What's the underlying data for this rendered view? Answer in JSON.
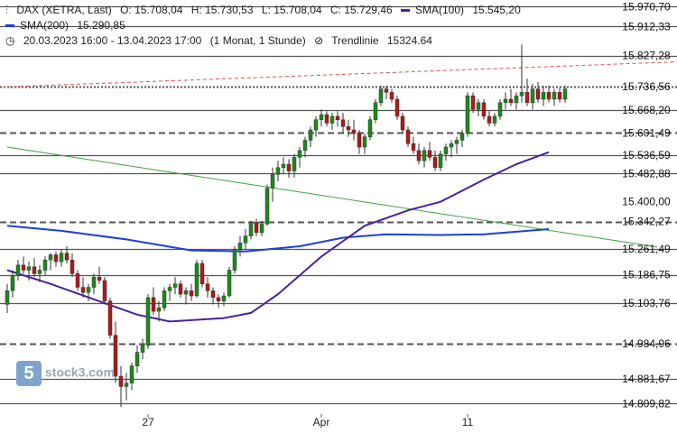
{
  "header": {
    "instrument": "DAX (XETRA, Last)",
    "open": "O: 15.708,04",
    "high": "H: 15.730,53",
    "low": "L: 15.708,04",
    "close": "C: 15.729,46",
    "sma100_label": "SMA(100)",
    "sma100_value": "15.545,20",
    "sma200_label": "SMA(200)",
    "sma200_value": "15.290,85",
    "range": "20.03.2023 16:00 - 13.04.2023 17:00",
    "interval": "(1 Monat, 1 Stunde)",
    "trend_label": "Trendlinie",
    "trend_value": "15324.64"
  },
  "watermark": {
    "text": "stock3.com",
    "logo": "5"
  },
  "colors": {
    "up": "#1a8a1a",
    "down": "#b01818",
    "sma100": "#4b1fa0",
    "sma200": "#1f3fd6",
    "trend": "#3aa63a",
    "level": "#555555",
    "resistance": "#e05050"
  },
  "chart_data": {
    "type": "candlestick",
    "x_labels": [
      {
        "label": "27",
        "index": 26
      },
      {
        "label": "Apr",
        "index": 58
      },
      {
        "label": "11",
        "index": 85
      }
    ],
    "y_range": [
      14790,
      15990
    ],
    "price_labels": [
      "15.970,70",
      "15.912,33",
      "15.827,28",
      "15.736,56",
      "15.668,20",
      "15.601,49",
      "15.536,59",
      "15.482,88",
      "15.400,00",
      "15.342,27",
      "15.261,49",
      "15.186,75",
      "15.103,76",
      "14.984,96",
      "14.881,67",
      "14.809,82"
    ],
    "levels": [
      {
        "value": 15970.7,
        "style": "solid"
      },
      {
        "value": 15912.33,
        "style": "solid"
      },
      {
        "value": 15827.28,
        "style": "solid"
      },
      {
        "value": 15736.56,
        "style": "dotted"
      },
      {
        "value": 15668.2,
        "style": "solid"
      },
      {
        "value": 15601.49,
        "style": "dashed"
      },
      {
        "value": 15536.59,
        "style": "solid"
      },
      {
        "value": 15482.88,
        "style": "solid"
      },
      {
        "value": 15342.27,
        "style": "dashed"
      },
      {
        "value": 15261.49,
        "style": "solid"
      },
      {
        "value": 15186.75,
        "style": "solid"
      },
      {
        "value": 15103.76,
        "style": "solid"
      },
      {
        "value": 14984.96,
        "style": "dashed"
      },
      {
        "value": 14881.67,
        "style": "solid"
      },
      {
        "value": 14809.82,
        "style": "solid"
      }
    ],
    "trendline_support": [
      {
        "i": 0,
        "v": 15560
      },
      {
        "i": 120,
        "v": 15268
      }
    ],
    "trendline_resistance": [
      {
        "i": 0,
        "v": 15736
      },
      {
        "i": 125,
        "v": 15810
      }
    ],
    "sma100": [
      [
        0,
        15200
      ],
      [
        8,
        15160
      ],
      [
        16,
        15115
      ],
      [
        24,
        15070
      ],
      [
        30,
        15050
      ],
      [
        40,
        15060
      ],
      [
        45,
        15075
      ],
      [
        50,
        15130
      ],
      [
        58,
        15240
      ],
      [
        66,
        15330
      ],
      [
        74,
        15375
      ],
      [
        80,
        15400
      ],
      [
        88,
        15465
      ],
      [
        94,
        15510
      ],
      [
        100,
        15545
      ]
    ],
    "sma200": [
      [
        0,
        15330
      ],
      [
        10,
        15315
      ],
      [
        22,
        15290
      ],
      [
        34,
        15258
      ],
      [
        44,
        15255
      ],
      [
        54,
        15270
      ],
      [
        62,
        15295
      ],
      [
        70,
        15305
      ],
      [
        80,
        15303
      ],
      [
        88,
        15305
      ],
      [
        100,
        15320
      ]
    ],
    "candles": [
      [
        15100,
        15160,
        15075,
        15140
      ],
      [
        15140,
        15200,
        15120,
        15185
      ],
      [
        15185,
        15230,
        15170,
        15215
      ],
      [
        15215,
        15240,
        15190,
        15200
      ],
      [
        15200,
        15225,
        15170,
        15210
      ],
      [
        15210,
        15235,
        15180,
        15190
      ],
      [
        15190,
        15215,
        15165,
        15200
      ],
      [
        15200,
        15240,
        15185,
        15230
      ],
      [
        15230,
        15250,
        15200,
        15245
      ],
      [
        15245,
        15255,
        15210,
        15225
      ],
      [
        15225,
        15260,
        15210,
        15250
      ],
      [
        15250,
        15270,
        15220,
        15230
      ],
      [
        15230,
        15250,
        15180,
        15190
      ],
      [
        15190,
        15200,
        15140,
        15150
      ],
      [
        15150,
        15180,
        15120,
        15135
      ],
      [
        15135,
        15160,
        15110,
        15150
      ],
      [
        15150,
        15190,
        15130,
        15180
      ],
      [
        15180,
        15210,
        15160,
        15170
      ],
      [
        15170,
        15180,
        15100,
        15110
      ],
      [
        15110,
        15120,
        15000,
        15010
      ],
      [
        15010,
        15050,
        14870,
        14890
      ],
      [
        14890,
        14920,
        14800,
        14860
      ],
      [
        14860,
        14900,
        14820,
        14870
      ],
      [
        14870,
        14930,
        14850,
        14920
      ],
      [
        14920,
        14980,
        14900,
        14960
      ],
      [
        14960,
        15000,
        14940,
        14980
      ],
      [
        14980,
        15130,
        14970,
        15120
      ],
      [
        15120,
        15150,
        15070,
        15080
      ],
      [
        15080,
        15110,
        15050,
        15090
      ],
      [
        15090,
        15150,
        15080,
        15140
      ],
      [
        15140,
        15160,
        15110,
        15150
      ],
      [
        15150,
        15180,
        15130,
        15160
      ],
      [
        15160,
        15170,
        15120,
        15130
      ],
      [
        15130,
        15150,
        15100,
        15140
      ],
      [
        15140,
        15160,
        15110,
        15125
      ],
      [
        15125,
        15230,
        15120,
        15220
      ],
      [
        15220,
        15230,
        15150,
        15160
      ],
      [
        15160,
        15180,
        15120,
        15140
      ],
      [
        15140,
        15150,
        15100,
        15120
      ],
      [
        15120,
        15130,
        15090,
        15110
      ],
      [
        15110,
        15135,
        15095,
        15125
      ],
      [
        15125,
        15210,
        15120,
        15200
      ],
      [
        15200,
        15270,
        15190,
        15260
      ],
      [
        15260,
        15300,
        15240,
        15280
      ],
      [
        15280,
        15320,
        15260,
        15300
      ],
      [
        15300,
        15345,
        15290,
        15340
      ],
      [
        15340,
        15350,
        15300,
        15310
      ],
      [
        15310,
        15345,
        15300,
        15335
      ],
      [
        15335,
        15450,
        15330,
        15440
      ],
      [
        15440,
        15500,
        15400,
        15480
      ],
      [
        15480,
        15520,
        15460,
        15500
      ],
      [
        15500,
        15530,
        15480,
        15510
      ],
      [
        15510,
        15525,
        15470,
        15490
      ],
      [
        15490,
        15540,
        15470,
        15530
      ],
      [
        15530,
        15560,
        15500,
        15550
      ],
      [
        15550,
        15590,
        15530,
        15580
      ],
      [
        15580,
        15620,
        15560,
        15610
      ],
      [
        15610,
        15650,
        15590,
        15640
      ],
      [
        15640,
        15670,
        15620,
        15655
      ],
      [
        15655,
        15665,
        15620,
        15630
      ],
      [
        15630,
        15660,
        15610,
        15650
      ],
      [
        15650,
        15665,
        15620,
        15640
      ],
      [
        15640,
        15660,
        15600,
        15620
      ],
      [
        15620,
        15640,
        15590,
        15610
      ],
      [
        15610,
        15640,
        15580,
        15600
      ],
      [
        15600,
        15610,
        15540,
        15560
      ],
      [
        15560,
        15600,
        15540,
        15590
      ],
      [
        15590,
        15650,
        15580,
        15640
      ],
      [
        15640,
        15700,
        15630,
        15690
      ],
      [
        15690,
        15740,
        15680,
        15730
      ],
      [
        15730,
        15740,
        15700,
        15720
      ],
      [
        15720,
        15730,
        15690,
        15700
      ],
      [
        15700,
        15710,
        15640,
        15650
      ],
      [
        15650,
        15660,
        15600,
        15610
      ],
      [
        15610,
        15620,
        15560,
        15570
      ],
      [
        15570,
        15590,
        15540,
        15550
      ],
      [
        15550,
        15570,
        15510,
        15520
      ],
      [
        15520,
        15560,
        15500,
        15550
      ],
      [
        15550,
        15575,
        15520,
        15530
      ],
      [
        15530,
        15550,
        15490,
        15500
      ],
      [
        15500,
        15550,
        15490,
        15540
      ],
      [
        15540,
        15570,
        15520,
        15560
      ],
      [
        15560,
        15580,
        15530,
        15570
      ],
      [
        15570,
        15590,
        15540,
        15580
      ],
      [
        15580,
        15610,
        15560,
        15600
      ],
      [
        15600,
        15720,
        15590,
        15710
      ],
      [
        15710,
        15720,
        15660,
        15670
      ],
      [
        15670,
        15700,
        15650,
        15690
      ],
      [
        15690,
        15700,
        15640,
        15650
      ],
      [
        15650,
        15665,
        15620,
        15630
      ],
      [
        15630,
        15660,
        15620,
        15650
      ],
      [
        15650,
        15700,
        15640,
        15690
      ],
      [
        15690,
        15720,
        15670,
        15700
      ],
      [
        15700,
        15730,
        15680,
        15690
      ],
      [
        15690,
        15720,
        15670,
        15710
      ],
      [
        15710,
        15860,
        15690,
        15720
      ],
      [
        15720,
        15760,
        15680,
        15690
      ],
      [
        15690,
        15745,
        15670,
        15730
      ],
      [
        15730,
        15750,
        15690,
        15700
      ],
      [
        15700,
        15740,
        15680,
        15720
      ],
      [
        15720,
        15740,
        15690,
        15700
      ],
      [
        15700,
        15730,
        15680,
        15720
      ],
      [
        15720,
        15735,
        15690,
        15700
      ],
      [
        15700,
        15740,
        15690,
        15730
      ]
    ]
  }
}
